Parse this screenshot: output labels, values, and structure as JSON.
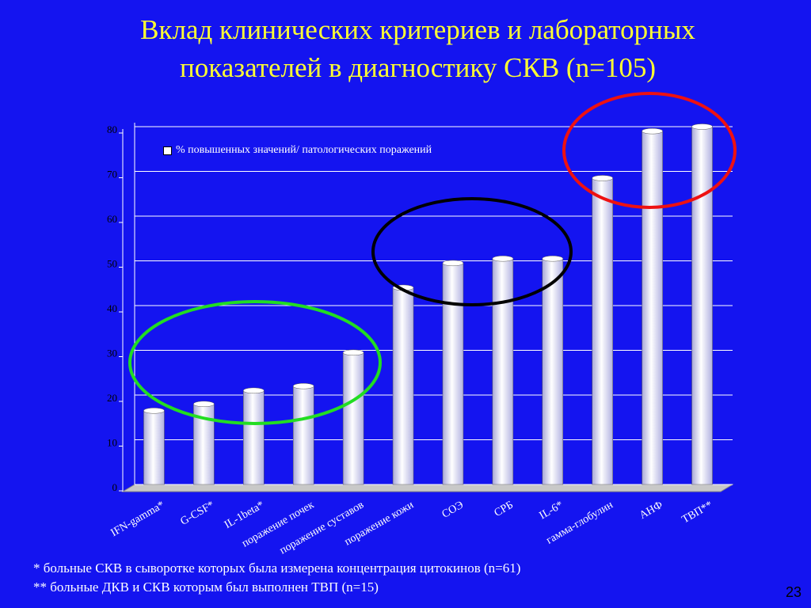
{
  "chart_data": {
    "type": "bar",
    "title": "Вклад клинических критериев и лабораторных показателей в диагностику СКВ (n=105)",
    "categories": [
      "IFN-gamma*",
      "G-CSF*",
      "IL-1beta*",
      "поражение почек",
      "поражение суставов",
      "поражение кожи",
      "СОЭ",
      "СРБ",
      "IL-6*",
      "гамма-глобулин",
      "АНФ",
      "ТВП**"
    ],
    "series": [
      {
        "name": "% повышенных значений/ патологических поражений",
        "color": "#ffffff",
        "values": [
          16.5,
          18,
          21,
          22,
          29.5,
          44,
          49.5,
          50.5,
          50.5,
          68.5,
          79,
          80
        ]
      }
    ],
    "ylim": [
      0,
      80
    ],
    "yticks": [
      0,
      10,
      20,
      30,
      40,
      50,
      60,
      70,
      80
    ],
    "grid": true,
    "legend": "top-left",
    "footnotes": [
      "* больные СКВ в сыворотке которых была измерена концентрация цитокинов (n=61)",
      "** больные ДКВ и  СКВ которым был выполнен ТВП (n=15)"
    ],
    "page_number": 23
  }
}
